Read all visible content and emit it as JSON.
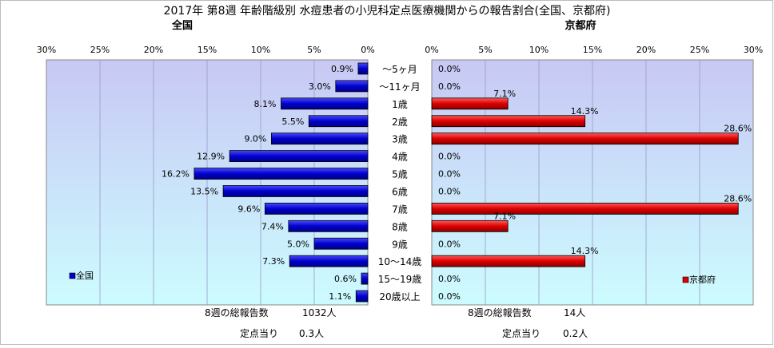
{
  "title": "2017年 第8週 年齢階級別 水痘患者の小児科定点医療機関からの報告割合(全国、京都府)",
  "age_labels": [
    "～5ヶ月",
    "～11ヶ月",
    "1歳",
    "2歳",
    "3歳",
    "4歳",
    "5歳",
    "6歳",
    "7歳",
    "8歳",
    "9歳",
    "10～14歳",
    "15～19歳",
    "20歳以上"
  ],
  "left_panel": {
    "title": "全国",
    "legend": "全国",
    "summary_label": "8週の総報告数",
    "summary_value": "1032人",
    "per_site_label": "定点当り",
    "per_site_value": "0.3人"
  },
  "right_panel": {
    "title": "京都府",
    "legend": "京都府",
    "summary_label": "8週の総報告数",
    "summary_value": "14人",
    "per_site_label": "定点当り",
    "per_site_value": "0.2人"
  },
  "colors": {
    "national": "#0000cc",
    "kyoto": "#dd0000",
    "plot_top": "#c8c8f4",
    "plot_bottom": "#ccfcff"
  },
  "chart_data": [
    {
      "type": "bar",
      "orientation": "horizontal",
      "title": "全国",
      "categories": [
        "～5ヶ月",
        "～11ヶ月",
        "1歳",
        "2歳",
        "3歳",
        "4歳",
        "5歳",
        "6歳",
        "7歳",
        "8歳",
        "9歳",
        "10～14歳",
        "15～19歳",
        "20歳以上"
      ],
      "series": [
        {
          "name": "全国",
          "values": [
            0.9,
            3.0,
            8.1,
            5.5,
            9.0,
            12.9,
            16.2,
            13.5,
            9.6,
            7.4,
            5.0,
            7.3,
            0.6,
            1.1
          ]
        }
      ],
      "value_labels": [
        "0.9%",
        "3.0%",
        "8.1%",
        "5.5%",
        "9.0%",
        "12.9%",
        "16.2%",
        "13.5%",
        "9.6%",
        "7.4%",
        "5.0%",
        "7.3%",
        "0.6%",
        "1.1%"
      ],
      "xlim": [
        0,
        30
      ],
      "x_direction": "reversed",
      "ticks": [
        "0%",
        "5%",
        "10%",
        "15%",
        "20%",
        "25%",
        "30%"
      ],
      "grid": true,
      "legend_position": "bottom-left"
    },
    {
      "type": "bar",
      "orientation": "horizontal",
      "title": "京都府",
      "categories": [
        "～5ヶ月",
        "～11ヶ月",
        "1歳",
        "2歳",
        "3歳",
        "4歳",
        "5歳",
        "6歳",
        "7歳",
        "8歳",
        "9歳",
        "10～14歳",
        "15～19歳",
        "20歳以上"
      ],
      "series": [
        {
          "name": "京都府",
          "values": [
            0.0,
            0.0,
            7.1,
            14.3,
            28.6,
            0.0,
            0.0,
            0.0,
            28.6,
            7.1,
            0.0,
            14.3,
            0.0,
            0.0
          ]
        }
      ],
      "value_labels": [
        "0.0%",
        "0.0%",
        "7.1%",
        "14.3%",
        "28.6%",
        "0.0%",
        "0.0%",
        "0.0%",
        "28.6%",
        "7.1%",
        "0.0%",
        "14.3%",
        "0.0%",
        "0.0%"
      ],
      "xlim": [
        0,
        30
      ],
      "x_direction": "normal",
      "ticks": [
        "0%",
        "5%",
        "10%",
        "15%",
        "20%",
        "25%",
        "30%"
      ],
      "grid": true,
      "legend_position": "bottom-right"
    }
  ]
}
